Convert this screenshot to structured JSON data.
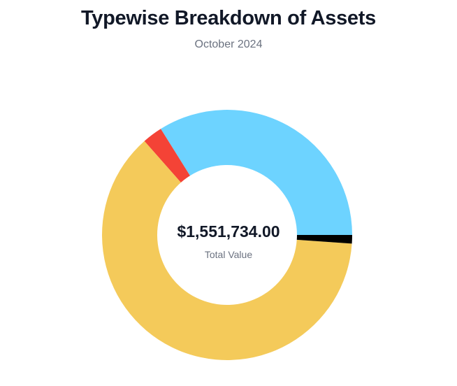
{
  "header": {
    "title": "Typewise Breakdown of Assets",
    "subtitle": "October 2024"
  },
  "center": {
    "value": "$1,551,734.00",
    "label": "Total Value"
  },
  "chart_data": {
    "type": "pie",
    "variant": "donut",
    "title": "Typewise Breakdown of Assets",
    "subtitle": "October 2024",
    "total": 1551734.0,
    "start": "3 o'clock, counterclockwise",
    "legend": "none",
    "slices": [
      {
        "fraction": 0.339,
        "color": "#6dd3ff"
      },
      {
        "fraction": 0.026,
        "color": "#f44336"
      },
      {
        "fraction": 0.624,
        "color": "#f4ca5a"
      },
      {
        "fraction": 0.011,
        "color": "#000000"
      }
    ]
  }
}
